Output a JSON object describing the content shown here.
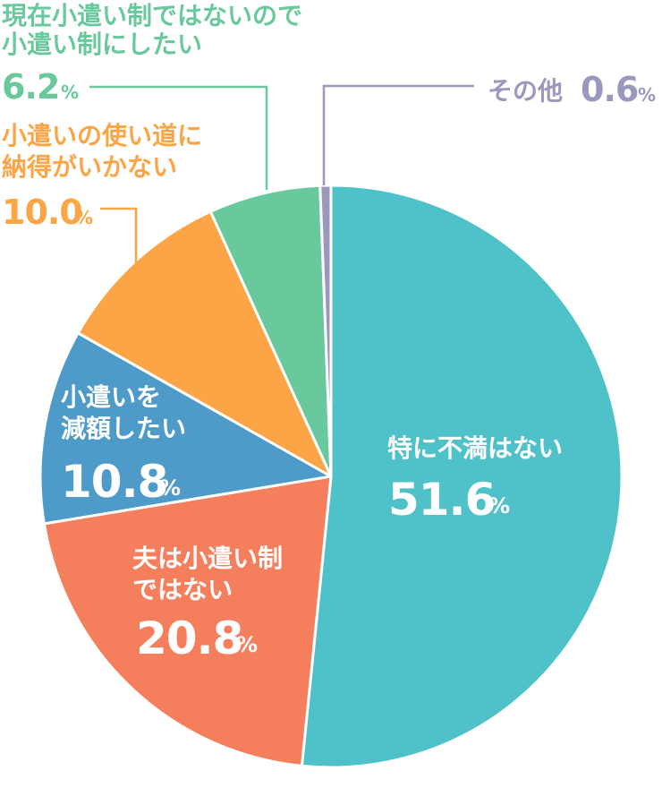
{
  "chart_data": {
    "type": "pie",
    "unit": "%",
    "slices": [
      {
        "label_lines": [
          "特に不満はない"
        ],
        "value": 51.6,
        "value_text": "51.6",
        "color": "#4fc1c8"
      },
      {
        "label_lines": [
          "夫は小遣い制",
          "ではない"
        ],
        "value": 20.8,
        "value_text": "20.8",
        "color": "#f57f5d"
      },
      {
        "label_lines": [
          "小遣いを",
          "減額したい"
        ],
        "value": 10.8,
        "value_text": "10.8",
        "color": "#4e9bc9"
      },
      {
        "label_lines": [
          "小遣いの使い道に",
          "納得がいかない"
        ],
        "value": 10.0,
        "value_text": "10.0",
        "color": "#fca546"
      },
      {
        "label_lines": [
          "現在小遣い制ではないので",
          "小遣い制にしたい"
        ],
        "value": 6.2,
        "value_text": "6.2",
        "color": "#69c89c"
      },
      {
        "label_lines": [
          "その他"
        ],
        "value": 0.6,
        "value_text": "0.6",
        "color": "#9b98be"
      }
    ]
  }
}
